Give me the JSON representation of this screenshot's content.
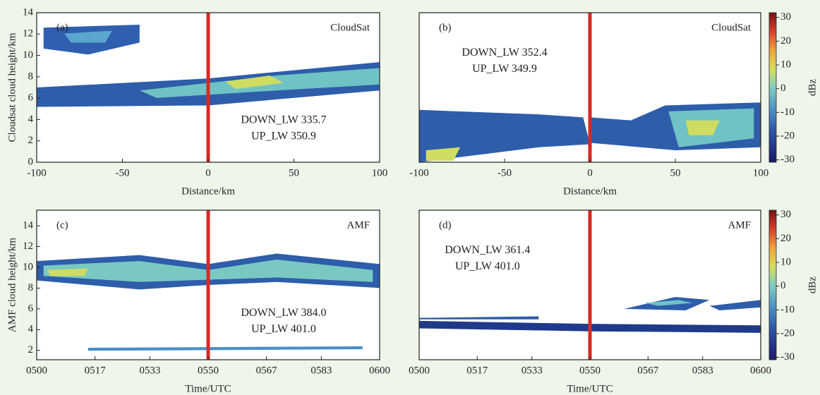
{
  "chart_data": [
    {
      "type": "heatmap",
      "panel_label": "(a)",
      "source_label": "CloudSat",
      "x_label": "Distance/km",
      "y_label": "Cloudsat cloud height/km",
      "annotations": [
        "DOWN_LW 335.7",
        "UP_LW 350.9"
      ],
      "xlim": [
        -100,
        100
      ],
      "xticks": [
        -100,
        -50,
        0,
        50,
        100
      ],
      "ylim": [
        0,
        14
      ],
      "yticks": [
        0,
        2,
        4,
        6,
        8,
        10,
        12,
        14
      ],
      "vline": 0,
      "vline_color": "#d62a24",
      "grid": false
    },
    {
      "type": "heatmap",
      "panel_label": "(b)",
      "source_label": "CloudSat",
      "x_label": "Distance/km",
      "annotations": [
        "DOWN_LW 352.4",
        "UP_LW 349.9"
      ],
      "xlim": [
        -100,
        100
      ],
      "xticks": [
        -100,
        -50,
        0,
        50,
        100
      ],
      "ylim": [
        0,
        14
      ],
      "vline": 0,
      "vline_color": "#d62a24",
      "grid": false,
      "colorbar": {
        "label": "dBz",
        "lim": [
          -31,
          32
        ],
        "ticks": [
          30,
          20,
          10,
          0,
          -10,
          -20,
          -30
        ]
      }
    },
    {
      "type": "heatmap",
      "panel_label": "(c)",
      "source_label": "AMF",
      "x_label": "Time/UTC",
      "y_label": "AMF cloud height/km",
      "annotations": [
        "DOWN_LW 384.0",
        "UP_LW 401.0"
      ],
      "xlim": [
        500,
        600
      ],
      "xticks": [
        {
          "value": 500,
          "label": "0500"
        },
        {
          "value": 517,
          "label": "0517"
        },
        {
          "value": 533,
          "label": "0533"
        },
        {
          "value": 550,
          "label": "0550"
        },
        {
          "value": 567,
          "label": "0567"
        },
        {
          "value": 583,
          "label": "0583"
        },
        {
          "value": 600,
          "label": "0600"
        }
      ],
      "ylim": [
        1.1,
        15.5
      ],
      "yticks": [
        2,
        4,
        6,
        8,
        10,
        12,
        14
      ],
      "vline": 550,
      "vline_color": "#d62a24",
      "grid": false
    },
    {
      "type": "heatmap",
      "panel_label": "(d)",
      "source_label": "AMF",
      "x_label": "Time/UTC",
      "annotations": [
        "DOWN_LW 361.4",
        "UP_LW 401.0"
      ],
      "xlim": [
        500,
        600
      ],
      "xticks": [
        {
          "value": 500,
          "label": "0500"
        },
        {
          "value": 517,
          "label": "0517"
        },
        {
          "value": 533,
          "label": "0533"
        },
        {
          "value": 550,
          "label": "0550"
        },
        {
          "value": 567,
          "label": "0567"
        },
        {
          "value": 583,
          "label": "0583"
        },
        {
          "value": 600,
          "label": "0600"
        }
      ],
      "ylim": [
        1.1,
        15.5
      ],
      "vline": 550,
      "vline_color": "#d62a24",
      "grid": false,
      "colorbar": {
        "label": "dBz",
        "lim": [
          -31,
          32
        ],
        "ticks": [
          30,
          20,
          10,
          0,
          -10,
          -20,
          -30
        ]
      }
    }
  ]
}
